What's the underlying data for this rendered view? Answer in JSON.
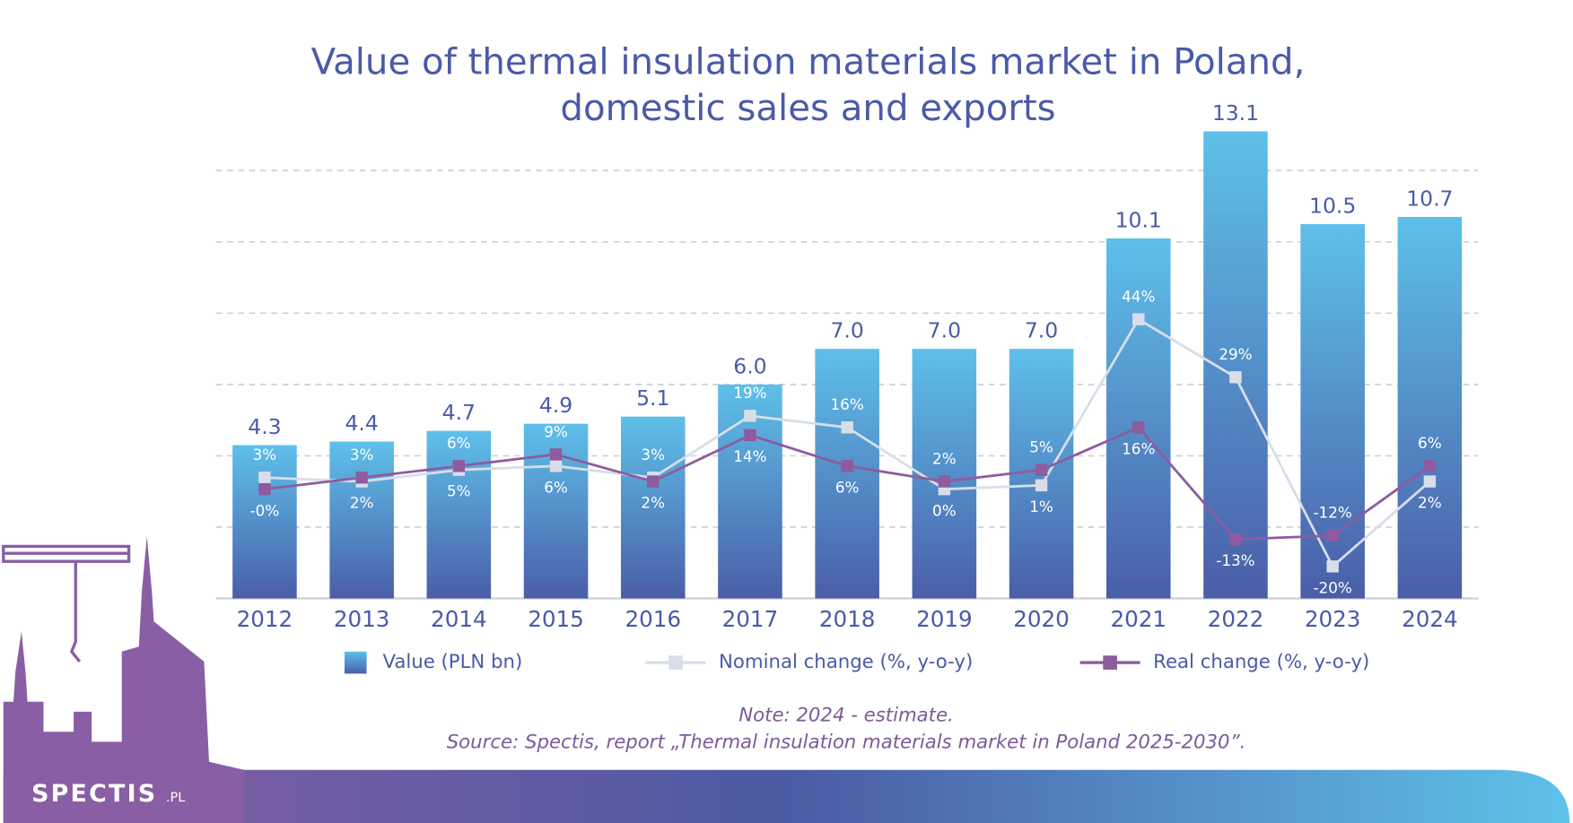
{
  "chart_data": {
    "type": "bar",
    "title": "Value of thermal insulation materials market in Poland, domestic sales and exports",
    "categories": [
      "2012",
      "2013",
      "2014",
      "2015",
      "2016",
      "2017",
      "2018",
      "2019",
      "2020",
      "2021",
      "2022",
      "2023",
      "2024"
    ],
    "series": [
      {
        "name": "Value (PLN bn)",
        "type": "bar",
        "color": "#4a8fd0",
        "values": [
          4.3,
          4.4,
          4.7,
          4.9,
          5.1,
          6.0,
          7.0,
          7.0,
          7.0,
          10.1,
          13.1,
          10.5,
          10.7
        ],
        "value_labels": [
          "4.3",
          "4.4",
          "4.7",
          "4.9",
          "5.1",
          "6.0",
          "7.0",
          "7.0",
          "7.0",
          "10.1",
          "13.1",
          "10.5",
          "10.7"
        ]
      },
      {
        "name": "Nominal change (%, y-o-y)",
        "type": "line",
        "axis": "y2",
        "color": "#d8dee9",
        "values": [
          3,
          2,
          5,
          6,
          3,
          19,
          16,
          0,
          1,
          44,
          29,
          -20,
          2
        ],
        "value_labels": [
          "3%",
          "2%",
          "5%",
          "6%",
          "3%",
          "19%",
          "16%",
          "0%",
          "1%",
          "44%",
          "29%",
          "-20%",
          "2%"
        ]
      },
      {
        "name": "Real change (%, y-o-y)",
        "type": "line",
        "axis": "y2",
        "color": "#8e5b9f",
        "values": [
          0,
          3,
          6,
          9,
          2,
          14,
          6,
          2,
          5,
          16,
          -13,
          -12,
          6
        ],
        "value_labels": [
          "-0%",
          "3%",
          "6%",
          "9%",
          "2%",
          "14%",
          "6%",
          "2%",
          "5%",
          "16%",
          "-13%",
          "-12%",
          "6%"
        ]
      }
    ],
    "ylim": [
      0,
      14
    ],
    "yticks": [
      0,
      2,
      4,
      6,
      8,
      10,
      12
    ],
    "y2lim": [
      -28.3,
      101
    ],
    "grid": true,
    "legend": "bottom",
    "note": "Note: 2024 - estimate.",
    "source": "Source: Spectis, report „Thermal insulation materials market in Poland 2025-2030”."
  },
  "brand": {
    "name": "SPECTIS",
    "suffix": ".PL"
  }
}
